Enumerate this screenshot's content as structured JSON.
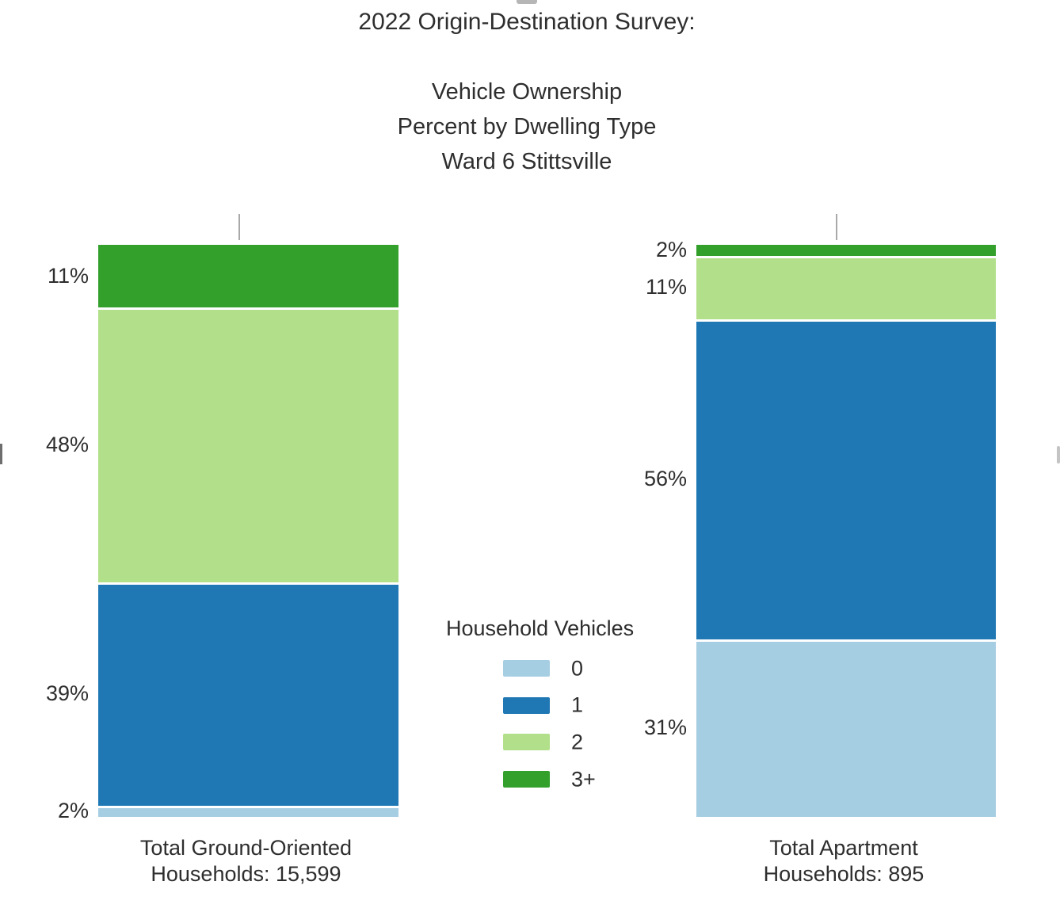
{
  "page": {
    "background": "#ffffff",
    "text_color": "#2e2e2e"
  },
  "header": {
    "title": "2022 Origin-Destination Survey:",
    "subtitle_lines": [
      "Vehicle Ownership",
      "Percent by Dwelling Type",
      "Ward 6 Stittsville"
    ]
  },
  "legend": {
    "title": "Household Vehicles",
    "entries": [
      {
        "label": "0",
        "color": "#a6cee3"
      },
      {
        "label": "1",
        "color": "#1f78b4"
      },
      {
        "label": "2",
        "color": "#b2df8a"
      },
      {
        "label": "3+",
        "color": "#33a02c"
      }
    ]
  },
  "chart_data": {
    "type": "bar",
    "subtype": "stacked-100-percent-column",
    "title": "2022 Origin-Destination Survey:",
    "subtitle": "Vehicle Ownership\nPercent by Dwelling Type\nWard 6 Stittsville",
    "legend_title": "Household Vehicles",
    "legend_position": "center-between-bars",
    "grid": false,
    "ylim": [
      0,
      100
    ],
    "value_label_style": "percent-outside-left",
    "categories": [
      {
        "label_lines": [
          "Total Ground-Oriented",
          "Households: 15,599"
        ],
        "households_total_text": "15,599"
      },
      {
        "label_lines": [
          "Total Apartment",
          "Households: 895"
        ],
        "households_total_text": "895"
      }
    ],
    "series": [
      {
        "name": "0",
        "color": "#a6cee3",
        "values_percent": [
          2,
          31
        ]
      },
      {
        "name": "1",
        "color": "#1f78b4",
        "values_percent": [
          39,
          56
        ]
      },
      {
        "name": "2",
        "color": "#b2df8a",
        "values_percent": [
          48,
          11
        ]
      },
      {
        "name": "3+",
        "color": "#33a02c",
        "values_percent": [
          11,
          2
        ]
      }
    ],
    "stack_order_top_to_bottom": [
      "3+",
      "2",
      "1",
      "0"
    ],
    "displayed_value_labels": {
      "Total Ground-Oriented": [
        "11%",
        "48%",
        "39%",
        "2%"
      ],
      "Total Apartment": [
        "2%",
        "11%",
        "56%",
        "31%"
      ]
    }
  },
  "decorations": {
    "tick_color": "#a9a9a9",
    "segment_gap_color": "#ffffff"
  }
}
